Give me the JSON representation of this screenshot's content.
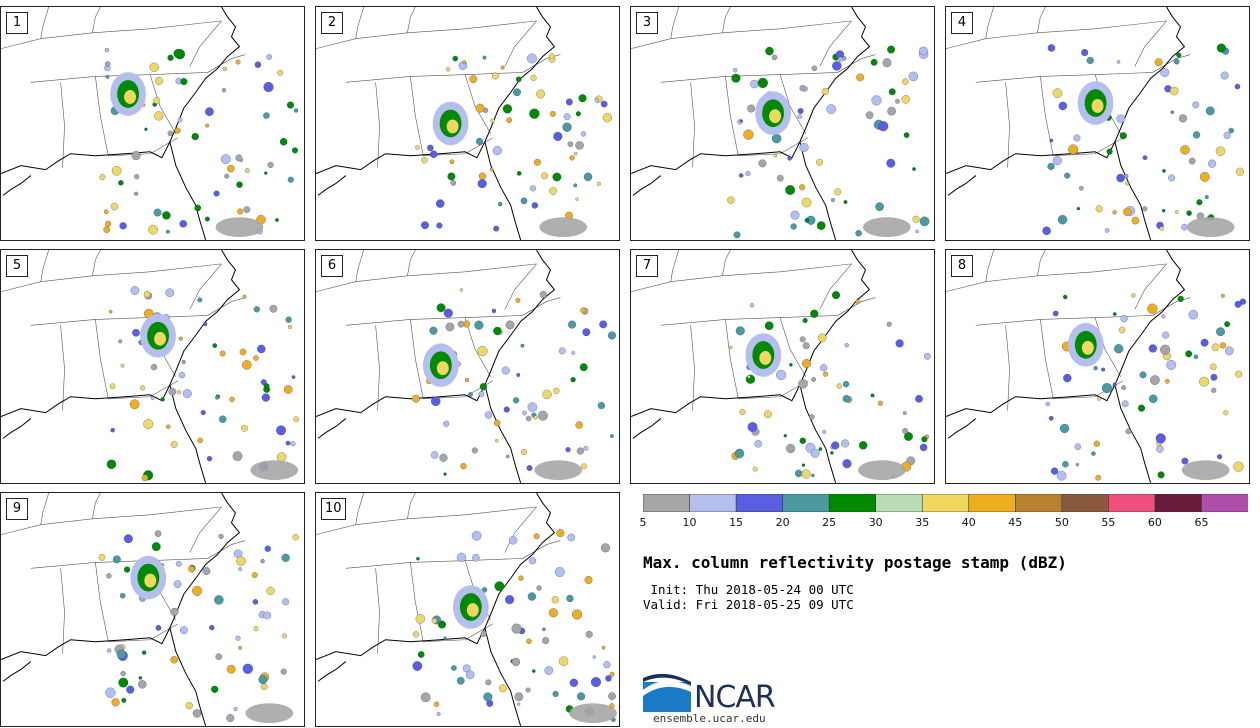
{
  "panels": [
    {
      "label": "1"
    },
    {
      "label": "2"
    },
    {
      "label": "3"
    },
    {
      "label": "4"
    },
    {
      "label": "5"
    },
    {
      "label": "6"
    },
    {
      "label": "7"
    },
    {
      "label": "8"
    },
    {
      "label": "9"
    },
    {
      "label": "10"
    }
  ],
  "colorbar": {
    "colors": [
      "#a6a6a6",
      "#b4bff0",
      "#5a5ee0",
      "#4a9aa0",
      "#008a00",
      "#b8dcb4",
      "#f0d860",
      "#eeae1e",
      "#b8822e",
      "#8a5a3e",
      "#f0507e",
      "#6a1a3a",
      "#b04eac"
    ],
    "labels": [
      "5",
      "10",
      "15",
      "20",
      "25",
      "30",
      "35",
      "40",
      "45",
      "50",
      "55",
      "60",
      "65"
    ]
  },
  "title": "Max. column reflectivity postage stamp (dBZ)",
  "init": " Init: Thu 2018-05-24 00 UTC",
  "valid": "Valid: Fri 2018-05-25 09 UTC",
  "logo": {
    "name": "NCAR",
    "url": "ensemble.ucar.edu"
  }
}
